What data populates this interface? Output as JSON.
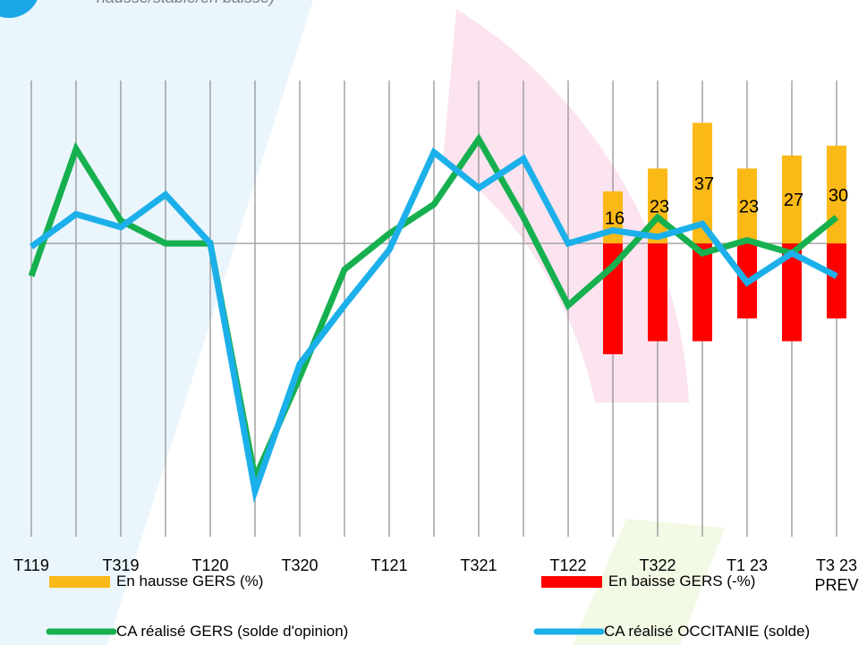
{
  "chart_data": {
    "type": "combo",
    "subtitle": "hausse/stable/en baisse)",
    "categories": [
      "T119",
      null,
      "T319",
      null,
      "T120",
      null,
      "T320",
      null,
      "T121",
      null,
      "T321",
      null,
      "T122",
      null,
      "T322",
      null,
      "T1 23",
      null,
      "T3 23 PREV"
    ],
    "ylim": [
      -90,
      50
    ],
    "grid": "x",
    "series": [
      {
        "name": "En hausse GERS (%)",
        "type": "bar",
        "color": "#fbb917",
        "labels": true,
        "values": [
          null,
          null,
          null,
          null,
          null,
          null,
          null,
          null,
          null,
          null,
          null,
          null,
          null,
          16,
          23,
          37,
          23,
          27,
          30
        ]
      },
      {
        "name": "En baisse GERS (-%)",
        "type": "bar",
        "color": "#ff0000",
        "values": [
          null,
          null,
          null,
          null,
          null,
          null,
          null,
          null,
          null,
          null,
          null,
          null,
          null,
          -34,
          -30,
          -30,
          -23,
          -30,
          -23
        ]
      },
      {
        "name": "CA réalisé GERS  (solde d'opinion)",
        "type": "line",
        "color": "#16b04f",
        "values": [
          -10,
          29,
          7,
          0,
          0,
          -72,
          -41,
          -8,
          3,
          12,
          32,
          8,
          -19,
          -7,
          8,
          -3,
          1,
          -3,
          8
        ]
      },
      {
        "name": "CA réalisé OCCITANIE (solde)",
        "type": "line",
        "color": "#1cb0ea",
        "values": [
          -1,
          9,
          5,
          15,
          0,
          -76,
          -37,
          -19,
          -2,
          28,
          17,
          26,
          0,
          4,
          2,
          6,
          -12,
          -3,
          -10
        ]
      }
    ]
  }
}
